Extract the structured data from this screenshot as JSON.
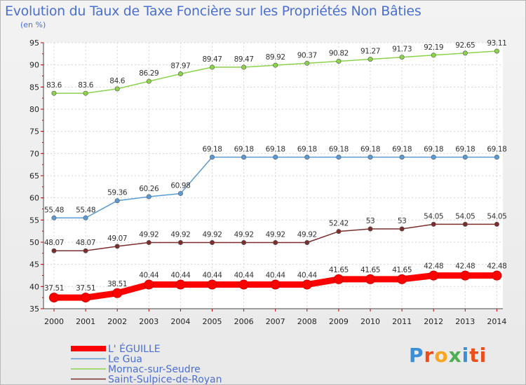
{
  "chart_data": {
    "type": "line",
    "title": "Evolution du Taux de Taxe Foncière sur les Propriétés Non Bâties",
    "subtitle": "(en %)",
    "x": [
      "2000",
      "2001",
      "2002",
      "2003",
      "2004",
      "2005",
      "2006",
      "2007",
      "2008",
      "2009",
      "2010",
      "2011",
      "2012",
      "2013",
      "2014"
    ],
    "ylim": [
      35,
      95
    ],
    "yticks": [
      35,
      40,
      45,
      50,
      55,
      60,
      65,
      70,
      75,
      80,
      85,
      90,
      95
    ],
    "grid": true,
    "legend_position": "bottom-left",
    "series": [
      {
        "name": "L' ÉGUILLE",
        "color": "#ff0000",
        "labels": [
          "37.51",
          "37.51",
          "38.51",
          "40.44",
          "40.44",
          "40.44",
          "40.44",
          "40.44",
          "40.44",
          "41.65",
          "41.65",
          "41.65",
          "42.48",
          "42.48",
          "42.48"
        ],
        "values": [
          37.51,
          37.51,
          38.51,
          40.44,
          40.44,
          40.44,
          40.44,
          40.44,
          40.44,
          41.65,
          41.65,
          41.65,
          42.48,
          42.48,
          42.48
        ]
      },
      {
        "name": "Le Gua",
        "color": "#5b9bd5",
        "labels": [
          "55.48",
          "55.48",
          "59.36",
          "60.26",
          "60.98",
          "69.18",
          "69.18",
          "69.18",
          "69.18",
          "69.18",
          "69.18",
          "69.18",
          "69.18",
          "69.18",
          "69.18"
        ],
        "values": [
          55.48,
          55.48,
          59.36,
          60.26,
          60.98,
          69.18,
          69.18,
          69.18,
          69.18,
          69.18,
          69.18,
          69.18,
          69.18,
          69.18,
          69.18
        ]
      },
      {
        "name": "Mornac-sur-Seudre",
        "color": "#8bd34a",
        "labels": [
          "83.6",
          "83.6",
          "84.6",
          "86.29",
          "87.97",
          "89.47",
          "89.47",
          "89.92",
          "90.37",
          "90.82",
          "91.27",
          "91.73",
          "92.19",
          "92.65",
          "93.11"
        ],
        "values": [
          83.6,
          83.6,
          84.6,
          86.29,
          87.97,
          89.47,
          89.47,
          89.92,
          90.37,
          90.82,
          91.27,
          91.73,
          92.19,
          92.65,
          93.11
        ]
      },
      {
        "name": "Saint-Sulpice-de-Royan",
        "color": "#7b2d2d",
        "labels": [
          "48.07",
          "48.07",
          "49.07",
          "49.92",
          "49.92",
          "49.92",
          "49.92",
          "49.92",
          "49.92",
          "52.42",
          "53",
          "53",
          "54.05",
          "54.05",
          "54.05"
        ],
        "values": [
          48.07,
          48.07,
          49.07,
          49.92,
          49.92,
          49.92,
          49.92,
          49.92,
          49.92,
          52.42,
          53,
          53,
          54.05,
          54.05,
          54.05
        ]
      }
    ]
  },
  "logo": {
    "letters": [
      "P",
      "r",
      "o",
      "x",
      "i",
      "ti"
    ]
  }
}
